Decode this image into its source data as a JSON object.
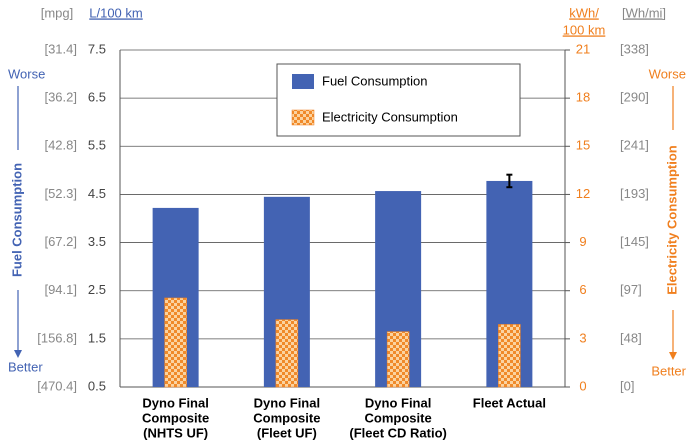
{
  "chart_data": {
    "type": "bar",
    "categories": [
      [
        "Dyno Final",
        "Composite",
        "(NHTS UF)"
      ],
      [
        "Dyno Final",
        "Composite",
        "(Fleet UF)"
      ],
      [
        "Dyno Final",
        "Composite",
        "(Fleet CD Ratio)"
      ],
      [
        "Fleet Actual"
      ]
    ],
    "series": [
      {
        "name": "Fuel Consumption",
        "color": "#4363b3",
        "values": [
          4.22,
          4.45,
          4.57,
          4.78
        ],
        "errors": [
          null,
          null,
          null,
          0.13
        ]
      },
      {
        "name": "Electricity Consumption",
        "color": "#f07f1e",
        "axis": "y2",
        "values": [
          5.55,
          4.2,
          3.45,
          3.9
        ]
      }
    ],
    "ylim": [
      0.5,
      7.5
    ],
    "yticks": [
      0.5,
      1.5,
      2.5,
      3.5,
      4.5,
      5.5,
      6.5,
      7.5
    ],
    "y2lim": [
      0,
      21
    ],
    "y2ticks": [
      0,
      3,
      6,
      9,
      12,
      15,
      18,
      21
    ],
    "y_unit": "L/100 km",
    "y_alt_unit": "[mpg]",
    "y_alt_ticks": [
      "[470.4]",
      "[156.8]",
      "[94.1]",
      "[67.2]",
      "[52.3]",
      "[42.8]",
      "[36.2]",
      "[31.4]"
    ],
    "y2_unit": [
      "kWh/",
      "100 km"
    ],
    "y2_alt_unit": "[Wh/mi]",
    "y2_alt_ticks": [
      "[0]",
      "[48]",
      "[97]",
      "[145]",
      "[193]",
      "[241]",
      "[290]",
      "[338]"
    ],
    "y_label": "Fuel Consumption",
    "y2_label": "Electricity Consumption",
    "worse": "Worse",
    "better": "Better",
    "grid": true,
    "legend": "top-right"
  }
}
